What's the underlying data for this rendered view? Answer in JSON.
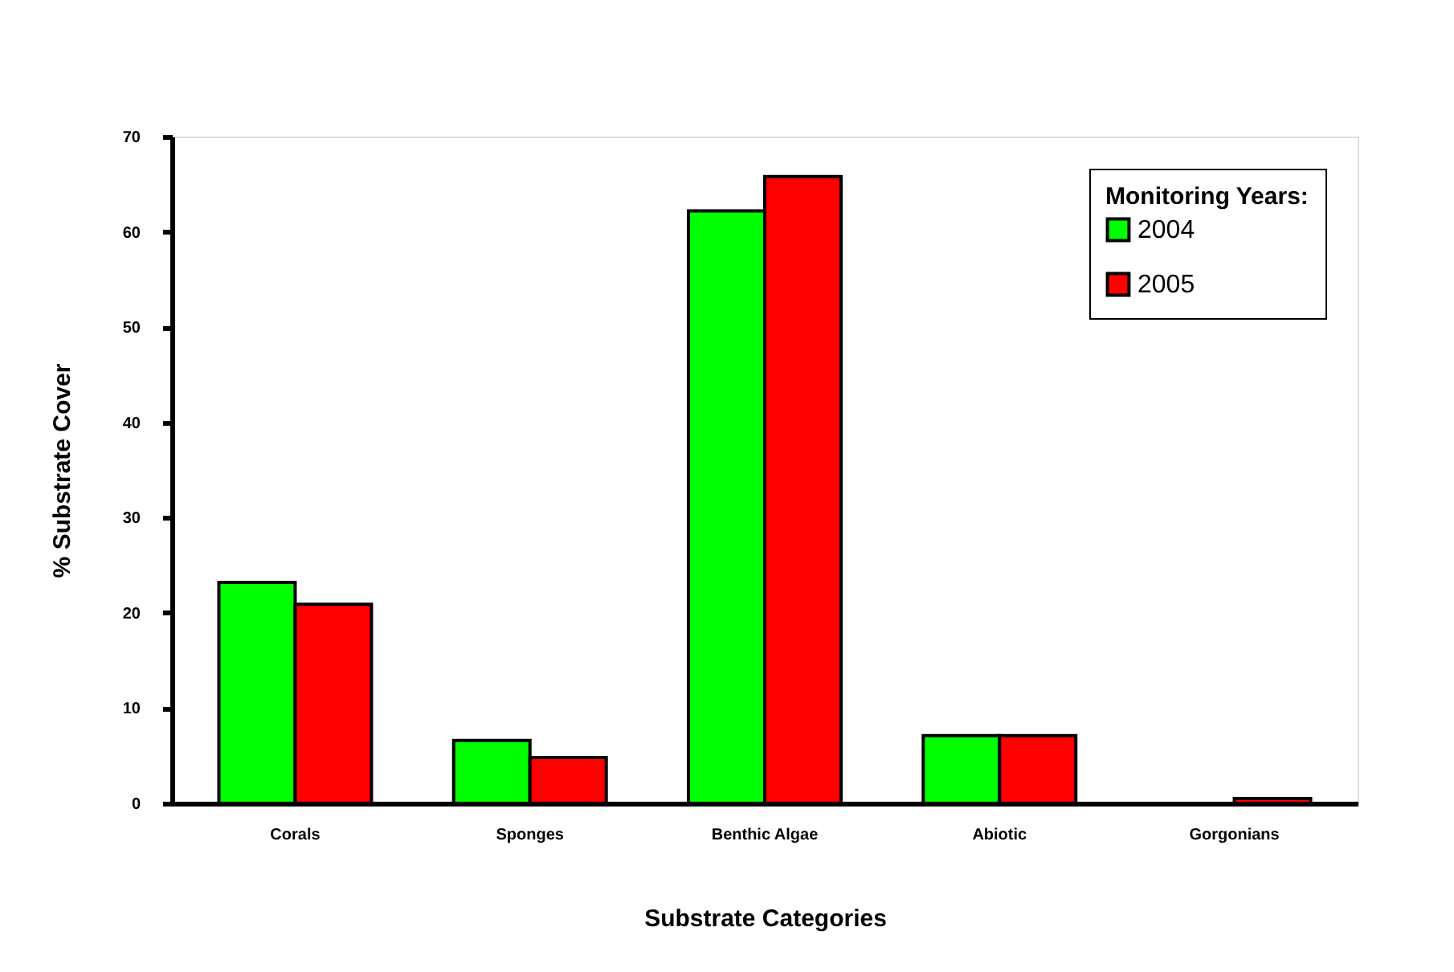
{
  "chart_data": {
    "type": "bar",
    "xlabel": "Substrate Categories",
    "ylabel": "% Substrate Cover",
    "legend_title": "Monitoring Years:",
    "categories": [
      "Corals",
      "Sponges",
      "Benthic Algae",
      "Abiotic",
      "Gorgonians"
    ],
    "series": [
      {
        "name": "2004",
        "color": "#00ff00",
        "values": [
          23.2,
          6.6,
          62.2,
          7.1,
          0
        ]
      },
      {
        "name": "2005",
        "color": "#ff0000",
        "values": [
          20.9,
          4.8,
          65.8,
          7.1,
          0.5
        ]
      }
    ],
    "ylim": [
      0,
      70
    ],
    "yticks": [
      0,
      10,
      20,
      30,
      40,
      50,
      60,
      70
    ],
    "grid": false,
    "legend": "top right"
  }
}
